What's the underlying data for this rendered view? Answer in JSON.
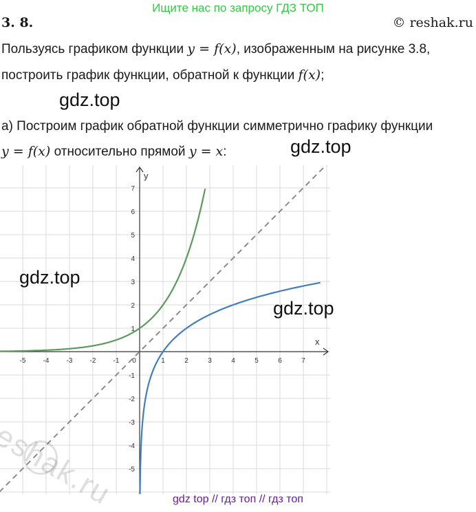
{
  "header": {
    "banner": "Ищите нас по запросу ГДЗ ТОП",
    "problem_number": "3. 8.",
    "copyright": "© reshak.ru"
  },
  "text": {
    "line1_a": "Пользуясь графиком функции ",
    "line1_b": "y = f(x)",
    "line1_c": ", изображенным на рисунке 3.8,",
    "line2_a": "построить график функции, обратной к функции ",
    "line2_b": "f(x)",
    "line2_c": ";",
    "line3": "а) Построим график обратной функции симметрично графику функции",
    "line4_a": "y = f(x)",
    "line4_b": " относительно прямой ",
    "line4_c": "y = x",
    "line4_d": ":"
  },
  "watermarks": {
    "w1": "gdz.top",
    "w2": "gdz.top",
    "w3": "gdz.top",
    "w4": "gdz.top",
    "diag": "reshak.ru"
  },
  "footer": {
    "text": "gdz top  //  гдз топ  //  гдз топ"
  },
  "chart_data": {
    "type": "line",
    "xlabel": "x",
    "ylabel": "y",
    "xlim": [
      -6,
      8
    ],
    "ylim": [
      -6,
      8
    ],
    "grid": true,
    "x_ticks": [
      "-5",
      "-4",
      "-3",
      "-2",
      "-1",
      "0",
      "1",
      "2",
      "3",
      "4",
      "5",
      "6",
      "7"
    ],
    "y_ticks": [
      "-5",
      "-4",
      "-3",
      "-2",
      "-1",
      "1",
      "2",
      "3",
      "4",
      "5",
      "6",
      "7"
    ],
    "series": [
      {
        "color": "#5b9a5b",
        "style": "solid",
        "x": [
          -6,
          -5,
          -4,
          -3,
          -2,
          -1,
          0,
          0.5,
          1,
          1.5,
          2,
          2.5,
          2.8
        ],
        "y": [
          0.016,
          0.031,
          0.063,
          0.125,
          0.25,
          0.5,
          1,
          1.41,
          2,
          2.83,
          4,
          5.66,
          6.96
        ]
      },
      {
        "color": "#3f7fbf",
        "style": "solid",
        "x": [
          0.031,
          0.063,
          0.125,
          0.25,
          0.5,
          1,
          1.41,
          2,
          2.83,
          4,
          5.66,
          7.8
        ],
        "y": [
          -5,
          -4,
          -3,
          -2,
          -1,
          0,
          0.5,
          1,
          1.5,
          2,
          2.5,
          2.96
        ]
      },
      {
        "color": "#8a8a8a",
        "style": "dashed",
        "x": [
          -6,
          8
        ],
        "y": [
          -6,
          8
        ]
      }
    ]
  }
}
